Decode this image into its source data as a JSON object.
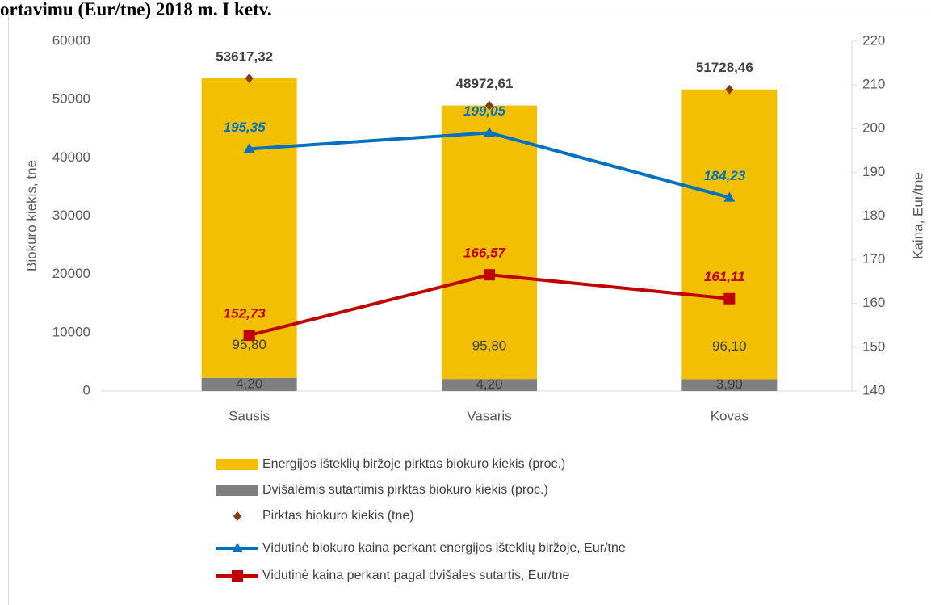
{
  "chart_data": {
    "type": "bar",
    "title": "ortavimu (Eur/tne) 2018 m. I ketv.",
    "categories": [
      "Sausis",
      "Vasaris",
      "Kovas"
    ],
    "ylabel": "Biokuro kiekis, tne",
    "y2label": "Kaina, Eur/tne",
    "ylim": [
      0,
      60000
    ],
    "yticks": [
      0,
      10000,
      20000,
      30000,
      40000,
      50000,
      60000
    ],
    "y2lim": [
      140,
      220
    ],
    "y2ticks": [
      140,
      150,
      160,
      170,
      180,
      190,
      200,
      210,
      220
    ],
    "series": [
      {
        "name": "Energijos išteklių biržoje pirktas biokuro kiekis (proc.)",
        "type": "bar",
        "color": "#f2c000",
        "values": [
          95.8,
          95.8,
          96.1
        ],
        "value_labels": [
          "95,80",
          "95,80",
          "96,10"
        ]
      },
      {
        "name": "Dvišalėmis sutartimis pirktas biokuro kiekis (proc.)",
        "type": "bar",
        "color": "#7f7f7f",
        "values": [
          4.2,
          4.2,
          3.9
        ],
        "value_labels": [
          "4,20",
          "4,20",
          "3,90"
        ]
      },
      {
        "name": "Pirktas biokuro kiekis (tne)",
        "type": "scatter",
        "marker": "diamond",
        "color": "#843c0c",
        "values": [
          53617.32,
          48972.61,
          51728.46
        ],
        "value_labels": [
          "53617,32",
          "48972,61",
          "51728,46"
        ]
      },
      {
        "name": "Vidutinė biokuro kaina perkant energijos išteklių biržoje, Eur/tne",
        "type": "line",
        "marker": "triangle",
        "axis": "y2",
        "color": "#0070c0",
        "values": [
          195.35,
          199.05,
          184.23
        ],
        "value_labels": [
          "195,35",
          "199,05",
          "184,23"
        ]
      },
      {
        "name": "Vidutinė kaina perkant pagal dvišales sutartis, Eur/tne",
        "type": "line",
        "marker": "square",
        "axis": "y2",
        "color": "#c00000",
        "values": [
          152.73,
          166.57,
          161.11
        ],
        "value_labels": [
          "152,73",
          "166,57",
          "161,11"
        ]
      }
    ]
  }
}
